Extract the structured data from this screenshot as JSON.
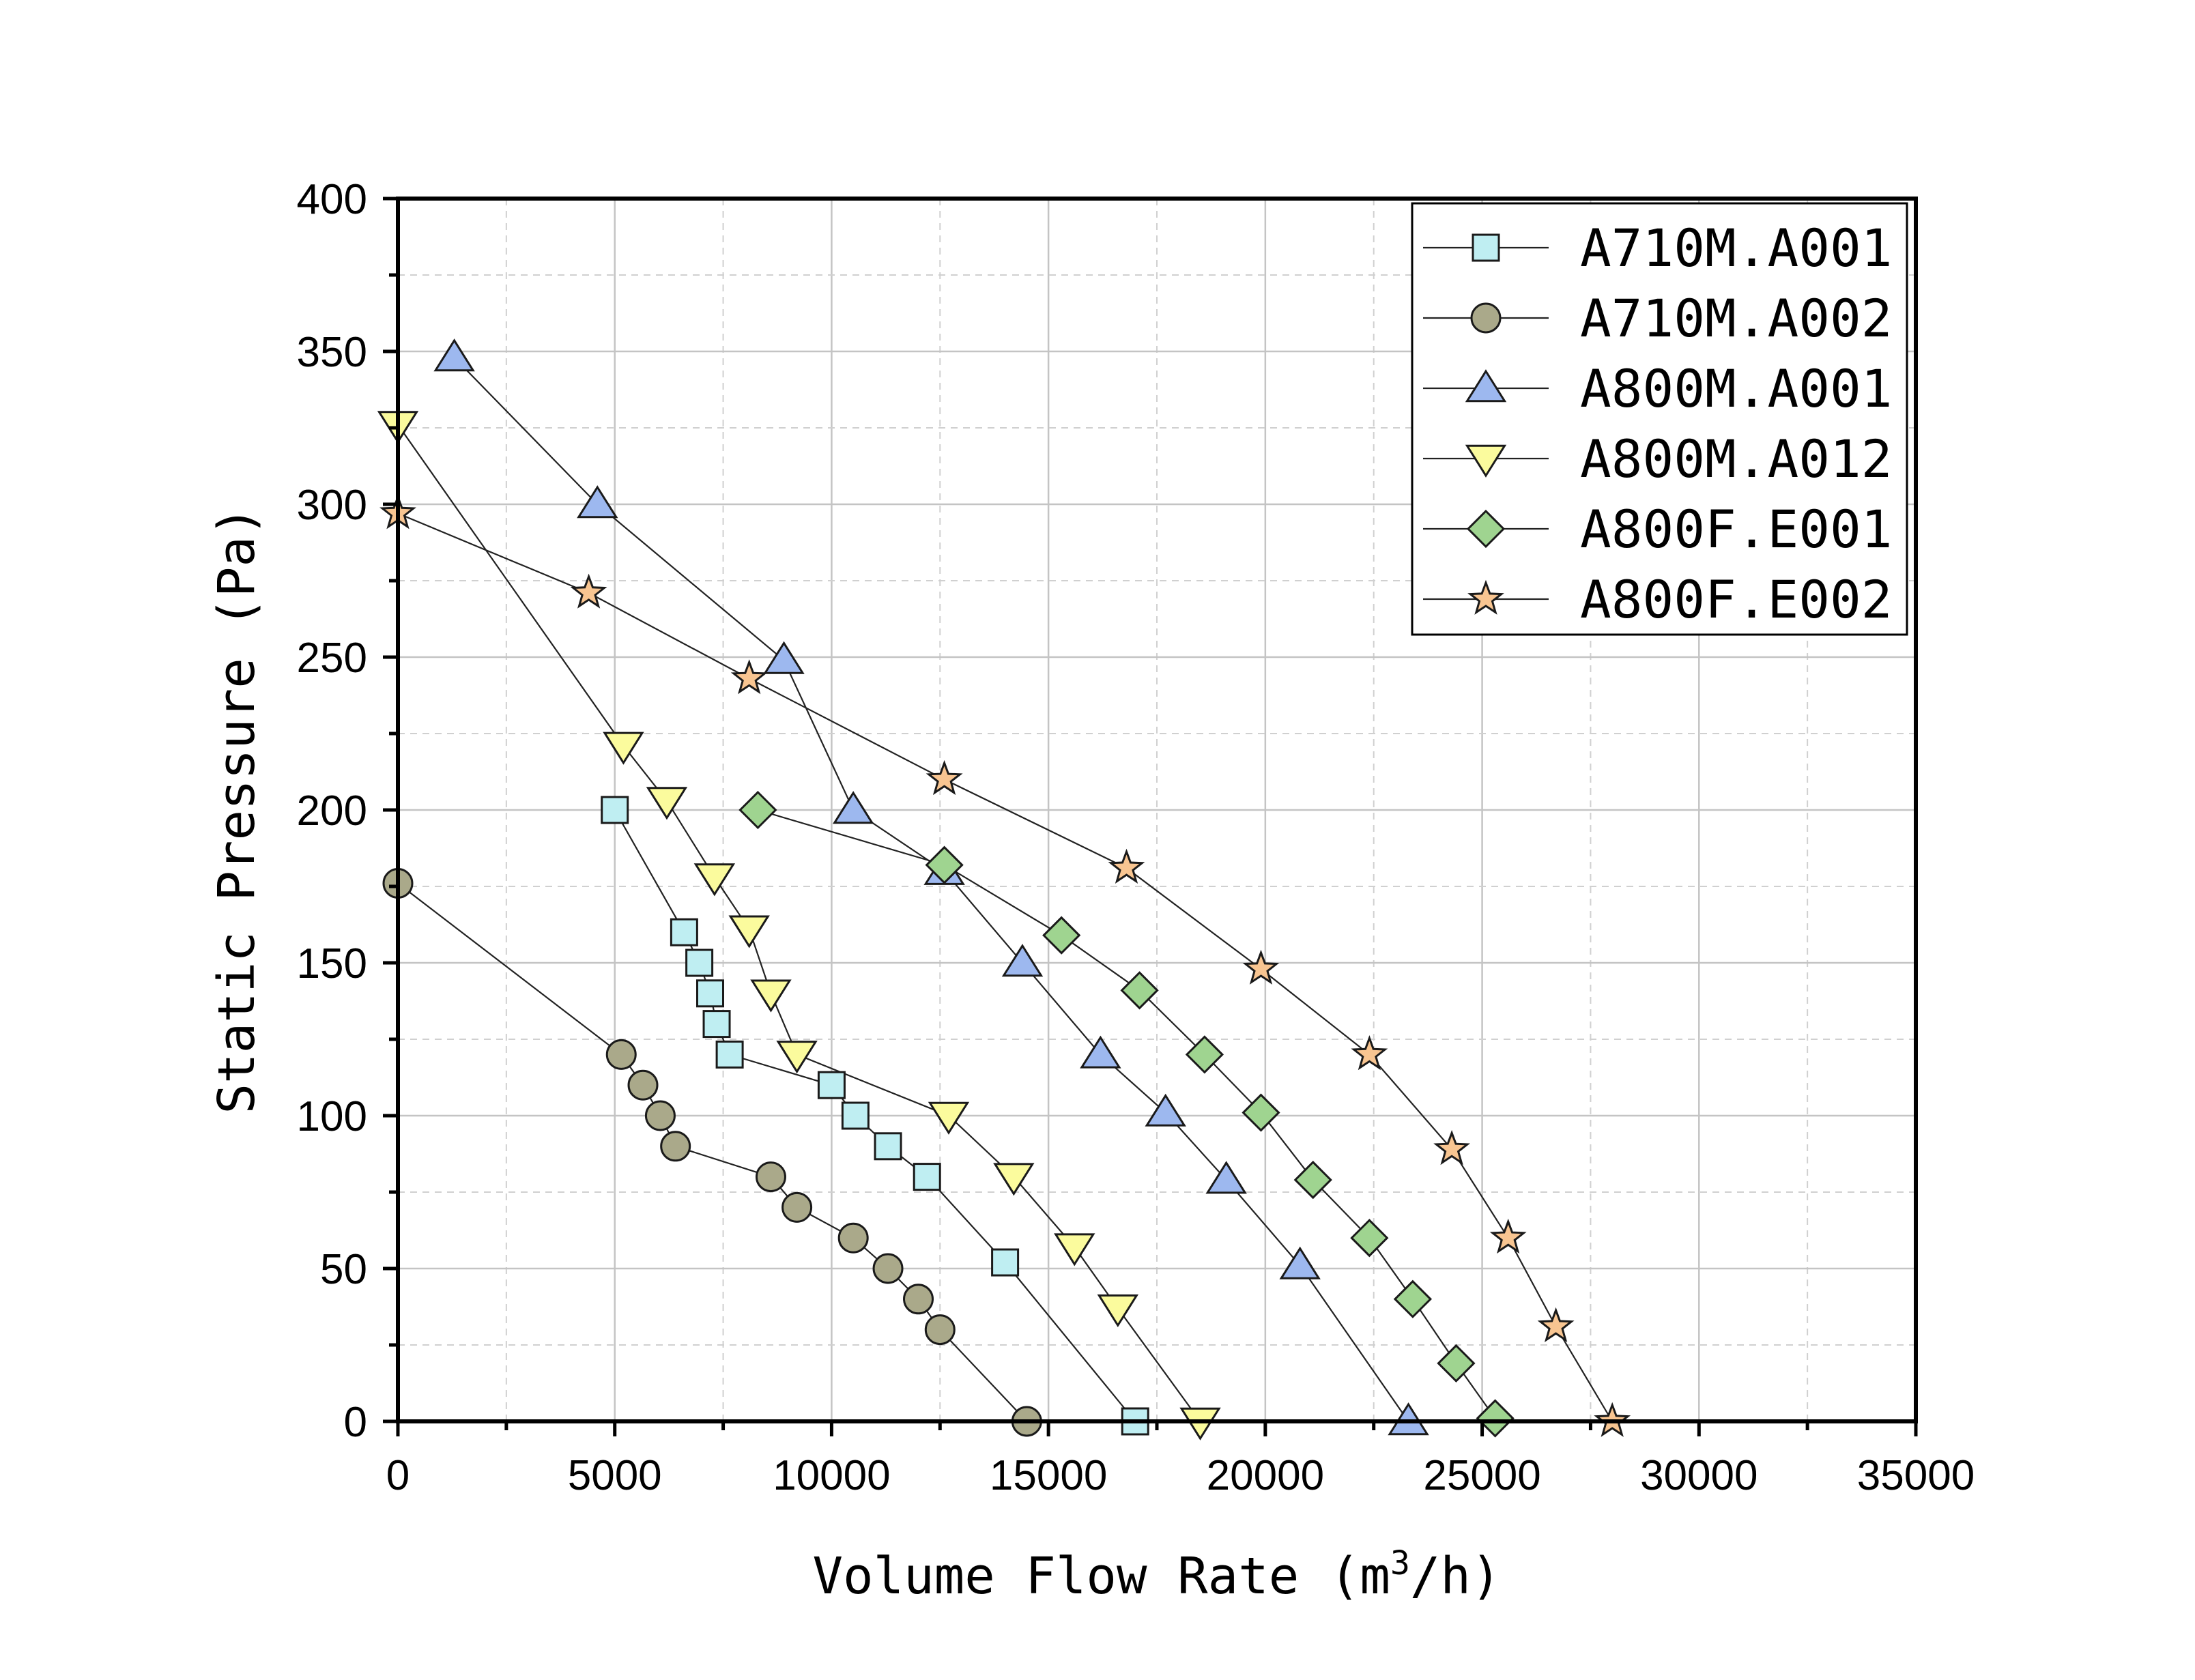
{
  "chart_data": {
    "type": "line",
    "title": "",
    "xlabel_parts": [
      "Volume Flow Rate (m",
      "3",
      "/h)"
    ],
    "ylabel": "Static Pressure (Pa)",
    "xlim": [
      0,
      35000
    ],
    "ylim": [
      0,
      400
    ],
    "xticks": [
      "0",
      "5000",
      "10000",
      "15000",
      "20000",
      "25000",
      "30000",
      "35000"
    ],
    "yticks": [
      "0",
      "50",
      "100",
      "150",
      "200",
      "250",
      "300",
      "350",
      "400"
    ],
    "grid": true,
    "legend_position": "top-right",
    "series": [
      {
        "name": "A710M.A001",
        "marker": "square",
        "color": "#bfeef2",
        "x": [
          5000,
          6600,
          6950,
          7200,
          7350,
          7650,
          10000,
          10550,
          11300,
          12200,
          14000,
          17000
        ],
        "y": [
          200,
          160,
          150,
          140,
          130,
          120,
          110,
          100,
          90,
          80,
          52,
          0
        ]
      },
      {
        "name": "A710M.A002",
        "marker": "circle",
        "color": "#aaa98a",
        "x": [
          0,
          5150,
          5650,
          6050,
          6400,
          8600,
          9200,
          10500,
          11300,
          12000,
          12500,
          14500
        ],
        "y": [
          176,
          120,
          110,
          100,
          90,
          80,
          70,
          60,
          50,
          40,
          30,
          0
        ]
      },
      {
        "name": "A800M.A001",
        "marker": "triangle-up",
        "color": "#9db8ef",
        "x": [
          1300,
          4600,
          8900,
          10500,
          12600,
          14400,
          16200,
          17700,
          19100,
          20800,
          23300
        ],
        "y": [
          348,
          300,
          249,
          200,
          180,
          150,
          120,
          101,
          79,
          51,
          0
        ]
      },
      {
        "name": "A800M.A012",
        "marker": "triangle-down",
        "color": "#fbfb9d",
        "x": [
          0,
          5200,
          6200,
          7300,
          8100,
          8600,
          9200,
          12700,
          14200,
          15600,
          16600,
          18500
        ],
        "y": [
          326,
          221,
          203,
          178,
          161,
          140,
          120,
          100,
          80,
          57,
          37,
          0
        ]
      },
      {
        "name": "A800F.E001",
        "marker": "diamond",
        "color": "#9fd490",
        "x": [
          8300,
          12600,
          15300,
          17100,
          18600,
          19900,
          21100,
          22400,
          23400,
          24400,
          25300
        ],
        "y": [
          200,
          182,
          159,
          141,
          120,
          101,
          79,
          60,
          40,
          19,
          1
        ]
      },
      {
        "name": "A800F.E002",
        "marker": "star",
        "color": "#f8c591",
        "x": [
          0,
          4400,
          8100,
          12600,
          16800,
          19900,
          22400,
          24300,
          25600,
          26700,
          28000
        ],
        "y": [
          297,
          271,
          243,
          210,
          181,
          148,
          120,
          89,
          60,
          31,
          0
        ]
      }
    ]
  }
}
